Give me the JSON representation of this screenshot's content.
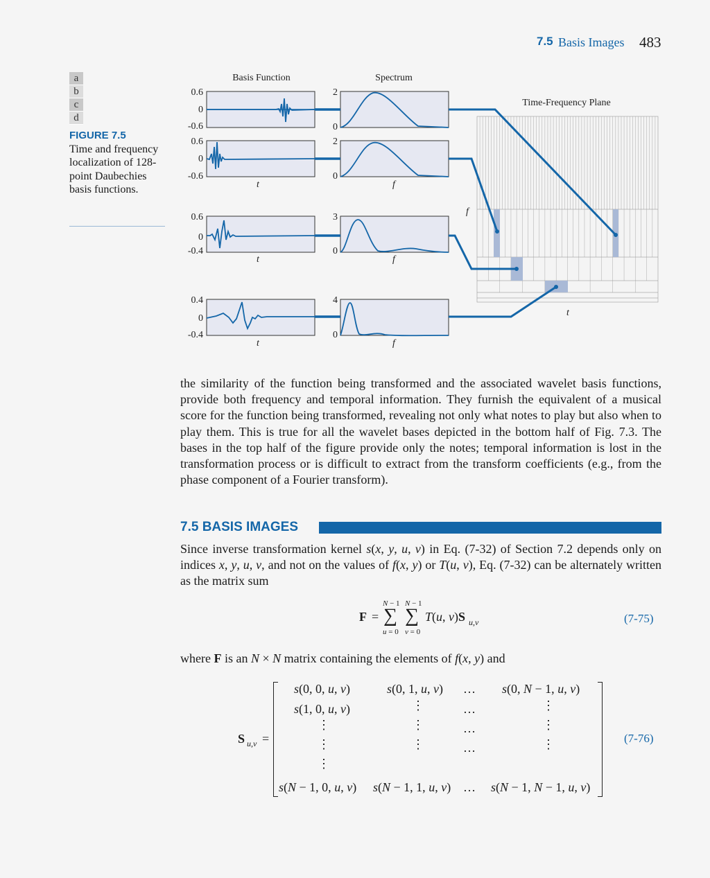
{
  "header": {
    "section_num": "7.5",
    "section_title": "Basis Images",
    "page": "483"
  },
  "figure": {
    "panel_letters": [
      "a",
      "b",
      "c",
      "d"
    ],
    "label": "FIGURE 7.5",
    "caption": "Time and frequency localization of 128-point Daubechies basis functions.",
    "col_titles": {
      "basis": "Basis Function",
      "spectrum": "Spectrum",
      "tf": "Time-Frequency Plane"
    },
    "plots": [
      {
        "basis_ticks": [
          "0.6",
          "0",
          "-0.6"
        ],
        "spec_ticks": [
          "2",
          "0"
        ],
        "xlabel_t": "",
        "xlabel_f": ""
      },
      {
        "basis_ticks": [
          "0.6",
          "0",
          "-0.6"
        ],
        "spec_ticks": [
          "2",
          "0"
        ],
        "xlabel_t": "t",
        "xlabel_f": "f"
      },
      {
        "basis_ticks": [
          "0.6",
          "0",
          "-0.4"
        ],
        "spec_ticks": [
          "3",
          "0"
        ],
        "xlabel_t": "t",
        "xlabel_f": "f"
      },
      {
        "basis_ticks": [
          "0.4",
          "0",
          "-0.4"
        ],
        "spec_ticks": [
          "4",
          "0"
        ],
        "xlabel_t": "t",
        "xlabel_f": "f"
      }
    ],
    "tf_axis_f": "f",
    "tf_axis_t": "t",
    "colors": {
      "accent": "#1466a8",
      "plot_bg": "#e6e8f2",
      "cell_hl": "#a9b9d6"
    }
  },
  "body": {
    "para1": "the similarity of the function being transformed and the associated wavelet basis functions, provide both frequency and temporal information. They furnish the equivalent of a musical score for the function being transformed, revealing not only what notes to play but also when to play them. This is true for all the wavelet bases depicted in the bottom half of Fig. 7.3. The bases in the top half of the figure provide only the notes; temporal information is lost in the transformation process or is difficult to extract from the transform coefficients (e.g., from the phase component of a Fourier transform).",
    "section_heading": "7.5 BASIS IMAGES",
    "eq1_number": "(7-75)",
    "eq2_number": "(7-76)",
    "matrix_sub": "u,v"
  }
}
